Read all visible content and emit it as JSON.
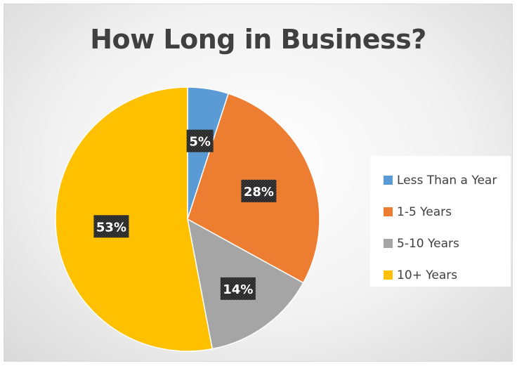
{
  "chart_data": {
    "type": "pie",
    "title": "How Long in Business?",
    "categories": [
      "Less Than a Year",
      "1-5 Years",
      "5-10 Years",
      "10+ Years"
    ],
    "values": [
      5,
      28,
      14,
      53
    ],
    "labels": [
      "5%",
      "28%",
      "14%",
      "53%"
    ],
    "colors": [
      "#5b9bd5",
      "#ed7d31",
      "#a5a5a5",
      "#ffc000"
    ],
    "start_angle": "12 o'clock",
    "direction": "clockwise",
    "legend": "right"
  }
}
